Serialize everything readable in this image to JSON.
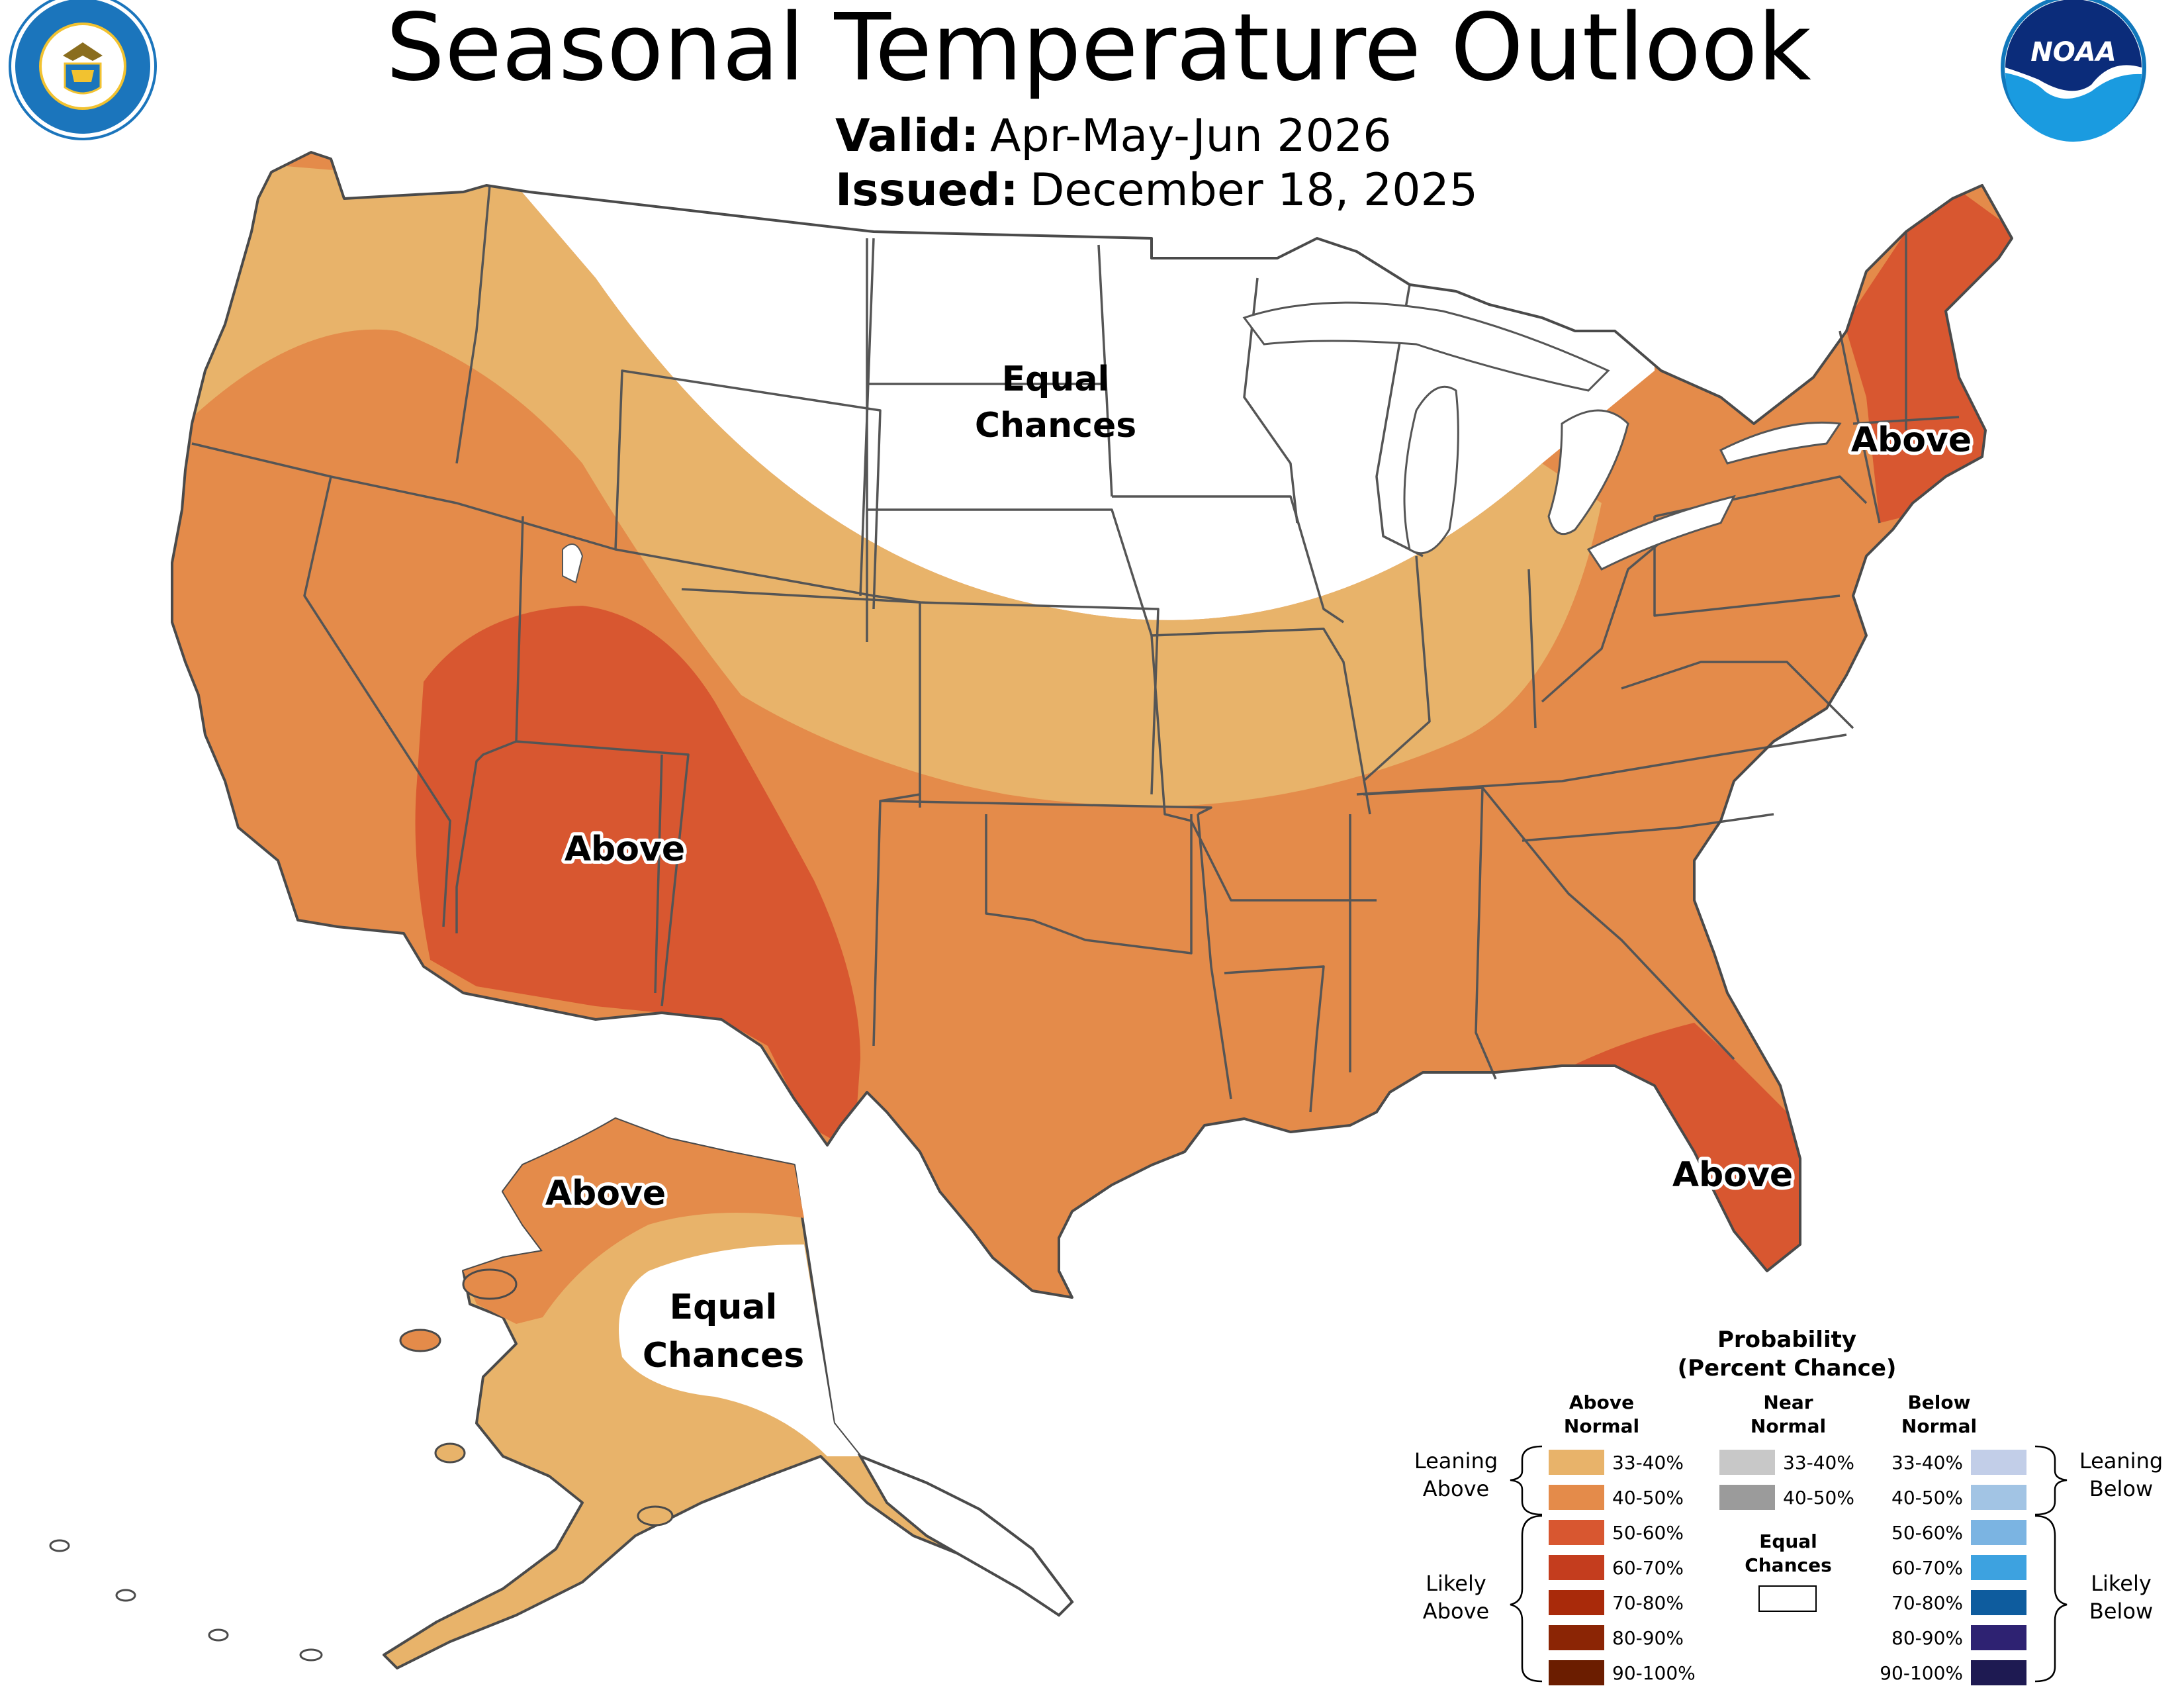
{
  "header": {
    "title": "Seasonal Temperature Outlook",
    "valid_label": "Valid:",
    "valid_value": "Apr-May-Jun 2026",
    "issued_label": "Issued:",
    "issued_value": "December 18, 2025"
  },
  "logos": {
    "commerce": "department-of-commerce-seal",
    "noaa": "NOAA"
  },
  "map": {
    "labels": {
      "conus_equal_1": "Equal",
      "conus_equal_2": "Chances",
      "southwest": "Above",
      "northeast": "Above",
      "florida": "Above",
      "alaska_above": "Above",
      "alaska_equal_1": "Equal",
      "alaska_equal_2": "Chances"
    },
    "colors": {
      "above_33_40": "#E8B36A",
      "above_40_50": "#E48B4A",
      "above_50_60": "#D85730",
      "equal": "#FFFFFF",
      "state_border": "#555555"
    }
  },
  "legend": {
    "title_1": "Probability",
    "title_2": "(Percent Chance)",
    "above": {
      "header_1": "Above",
      "header_2": "Normal",
      "items": [
        {
          "label": "33-40%",
          "color": "#E8B36A"
        },
        {
          "label": "40-50%",
          "color": "#E48B4A"
        },
        {
          "label": "50-60%",
          "color": "#D85730"
        },
        {
          "label": "60-70%",
          "color": "#C43D1E"
        },
        {
          "label": "70-80%",
          "color": "#A92A0A"
        },
        {
          "label": "80-90%",
          "color": "#8B2505"
        },
        {
          "label": "90-100%",
          "color": "#6B1D00"
        }
      ]
    },
    "near": {
      "header_1": "Near",
      "header_2": "Normal",
      "items": [
        {
          "label": "33-40%",
          "color": "#C8C8C8"
        },
        {
          "label": "40-50%",
          "color": "#9B9B9B"
        }
      ]
    },
    "equal": {
      "header_1": "Equal",
      "header_2": "Chances",
      "color": "#FFFFFF"
    },
    "below": {
      "header_1": "Below",
      "header_2": "Normal",
      "items": [
        {
          "label": "33-40%",
          "color": "#C2CEE8"
        },
        {
          "label": "40-50%",
          "color": "#A2C4E4"
        },
        {
          "label": "50-60%",
          "color": "#7BB4E2"
        },
        {
          "label": "60-70%",
          "color": "#3DA2E0"
        },
        {
          "label": "70-80%",
          "color": "#0E5C9E"
        },
        {
          "label": "80-90%",
          "color": "#2E2272"
        },
        {
          "label": "90-100%",
          "color": "#1E1A52"
        }
      ]
    },
    "side": {
      "leaning_above_1": "Leaning",
      "leaning_above_2": "Above",
      "likely_above_1": "Likely",
      "likely_above_2": "Above",
      "leaning_below_1": "Leaning",
      "leaning_below_2": "Below",
      "likely_below_1": "Likely",
      "likely_below_2": "Below"
    }
  }
}
